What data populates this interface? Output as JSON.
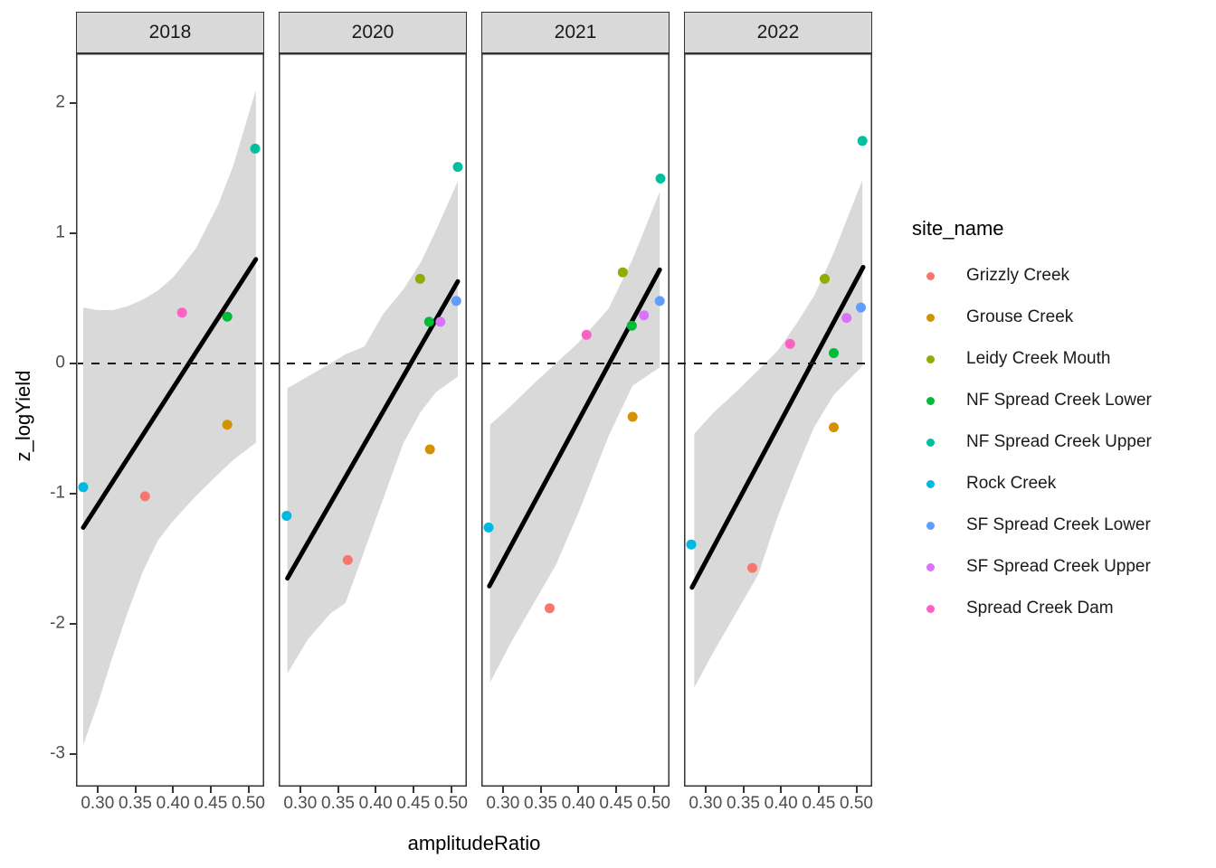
{
  "figure": {
    "background": "#ffffff",
    "panel_background": "#ffffff",
    "panel_border_color": "#333333",
    "strip_background": "#D9D9D9",
    "ribbon_color": "#D9D9D9",
    "trend_color": "#000000"
  },
  "axes": {
    "x": {
      "title": "amplitudeRatio",
      "tick_labels": [
        "0.30",
        "0.35",
        "0.40",
        "0.45",
        "0.50"
      ],
      "tick_values": [
        0.3,
        0.35,
        0.4,
        0.45,
        0.5
      ]
    },
    "y": {
      "title": "z_logYield",
      "tick_labels": [
        "2",
        "1",
        "0",
        "-1",
        "-2",
        "-3"
      ],
      "tick_values": [
        2,
        1,
        0,
        -1,
        -2,
        -3
      ]
    }
  },
  "legend": {
    "title": "site_name",
    "items": [
      {
        "label": "Grizzly Creek",
        "color": "#F8766D"
      },
      {
        "label": "Grouse Creek",
        "color": "#D39200"
      },
      {
        "label": "Leidy Creek Mouth",
        "color": "#93AA00"
      },
      {
        "label": "NF Spread Creek Lower",
        "color": "#00BA38"
      },
      {
        "label": "NF Spread Creek Upper",
        "color": "#00C19F"
      },
      {
        "label": "Rock Creek",
        "color": "#00B9E3"
      },
      {
        "label": "SF Spread Creek Lower",
        "color": "#619CFF"
      },
      {
        "label": "SF Spread Creek Upper",
        "color": "#DB72FB"
      },
      {
        "label": "Spread Creek Dam",
        "color": "#FF61C3"
      }
    ]
  },
  "chart_data": {
    "type": "scatter",
    "xlabel": "amplitudeRatio",
    "ylabel": "z_logYield",
    "facet_labels": [
      "2018",
      "2020",
      "2021",
      "2022"
    ],
    "x_range": [
      0.2714,
      0.521
    ],
    "y_range": [
      -3.25,
      2.382
    ],
    "x_ticks": [
      0.3,
      0.35,
      0.4,
      0.45,
      0.5
    ],
    "y_ticks": [
      2,
      1,
      0,
      -1,
      -2,
      -3
    ],
    "zero_line_y": 0,
    "grid": "off",
    "legend_position": "right",
    "sites": [
      {
        "name": "Grizzly Creek",
        "color": "#F8766D"
      },
      {
        "name": "Grouse Creek",
        "color": "#D39200"
      },
      {
        "name": "Leidy Creek Mouth",
        "color": "#93AA00"
      },
      {
        "name": "NF Spread Creek Lower",
        "color": "#00BA38"
      },
      {
        "name": "NF Spread Creek Upper",
        "color": "#00C19F"
      },
      {
        "name": "Rock Creek",
        "color": "#00B9E3"
      },
      {
        "name": "SF Spread Creek Lower",
        "color": "#619CFF"
      },
      {
        "name": "SF Spread Creek Upper",
        "color": "#DB72FB"
      },
      {
        "name": "Spread Creek Dam",
        "color": "#FF61C3"
      }
    ],
    "facets": [
      {
        "label": "2018",
        "points": [
          {
            "site": "Rock Creek",
            "x": 0.281,
            "y": -0.95
          },
          {
            "site": "Grizzly Creek",
            "x": 0.363,
            "y": -1.02
          },
          {
            "site": "Spread Creek Dam",
            "x": 0.412,
            "y": 0.39
          },
          {
            "site": "NF Spread Creek Lower",
            "x": 0.472,
            "y": 0.36
          },
          {
            "site": "Grouse Creek",
            "x": 0.472,
            "y": -0.47
          },
          {
            "site": "NF Spread Creek Upper",
            "x": 0.509,
            "y": 1.65
          }
        ],
        "trend": {
          "x": [
            0.281,
            0.51
          ],
          "y": [
            -1.26,
            0.8
          ]
        },
        "ribbon": {
          "x": [
            0.281,
            0.3,
            0.32,
            0.34,
            0.36,
            0.38,
            0.4,
            0.43,
            0.46,
            0.48,
            0.51
          ],
          "upper": [
            0.43,
            0.41,
            0.41,
            0.44,
            0.49,
            0.56,
            0.66,
            0.88,
            1.22,
            1.52,
            2.1
          ],
          "lower": [
            -2.93,
            -2.62,
            -2.25,
            -1.91,
            -1.6,
            -1.36,
            -1.21,
            -1.02,
            -0.85,
            -0.74,
            -0.61
          ]
        }
      },
      {
        "label": "2020",
        "points": [
          {
            "site": "Rock Creek",
            "x": 0.282,
            "y": -1.17
          },
          {
            "site": "Grizzly Creek",
            "x": 0.363,
            "y": -1.51
          },
          {
            "site": "Leidy Creek Mouth",
            "x": 0.459,
            "y": 0.65
          },
          {
            "site": "NF Spread Creek Lower",
            "x": 0.471,
            "y": 0.32
          },
          {
            "site": "SF Spread Creek Upper",
            "x": 0.486,
            "y": 0.32
          },
          {
            "site": "Grouse Creek",
            "x": 0.472,
            "y": -0.66
          },
          {
            "site": "SF Spread Creek Lower",
            "x": 0.507,
            "y": 0.48
          },
          {
            "site": "NF Spread Creek Upper",
            "x": 0.509,
            "y": 1.51
          }
        ],
        "trend": {
          "x": [
            0.283,
            0.509
          ],
          "y": [
            -1.65,
            0.63
          ]
        },
        "ribbon": {
          "x": [
            0.283,
            0.31,
            0.34,
            0.36,
            0.385,
            0.41,
            0.437,
            0.46,
            0.48,
            0.509
          ],
          "upper": [
            -0.19,
            -0.1,
            0.0,
            0.07,
            0.13,
            0.38,
            0.57,
            0.78,
            1.02,
            1.4
          ],
          "lower": [
            -2.38,
            -2.12,
            -1.92,
            -1.84,
            -1.44,
            -1.04,
            -0.61,
            -0.37,
            -0.22,
            -0.1
          ]
        }
      },
      {
        "label": "2021",
        "points": [
          {
            "site": "Rock Creek",
            "x": 0.281,
            "y": -1.26
          },
          {
            "site": "Grizzly Creek",
            "x": 0.362,
            "y": -1.88
          },
          {
            "site": "Spread Creek Dam",
            "x": 0.411,
            "y": 0.22
          },
          {
            "site": "Leidy Creek Mouth",
            "x": 0.459,
            "y": 0.7
          },
          {
            "site": "NF Spread Creek Lower",
            "x": 0.471,
            "y": 0.29
          },
          {
            "site": "SF Spread Creek Upper",
            "x": 0.487,
            "y": 0.37
          },
          {
            "site": "Grouse Creek",
            "x": 0.472,
            "y": -0.41
          },
          {
            "site": "SF Spread Creek Lower",
            "x": 0.508,
            "y": 0.48
          },
          {
            "site": "NF Spread Creek Upper",
            "x": 0.509,
            "y": 1.42
          }
        ],
        "trend": {
          "x": [
            0.282,
            0.508
          ],
          "y": [
            -1.71,
            0.72
          ]
        },
        "ribbon": {
          "x": [
            0.283,
            0.31,
            0.34,
            0.37,
            0.4,
            0.44,
            0.472,
            0.508
          ],
          "upper": [
            -0.47,
            -0.33,
            -0.16,
            0.0,
            0.16,
            0.42,
            0.8,
            1.32
          ],
          "lower": [
            -2.45,
            -2.15,
            -1.85,
            -1.55,
            -1.15,
            -0.56,
            -0.17,
            -0.03
          ]
        }
      },
      {
        "label": "2022",
        "points": [
          {
            "site": "Rock Creek",
            "x": 0.281,
            "y": -1.39
          },
          {
            "site": "Grizzly Creek",
            "x": 0.362,
            "y": -1.57
          },
          {
            "site": "Spread Creek Dam",
            "x": 0.412,
            "y": 0.15
          },
          {
            "site": "Leidy Creek Mouth",
            "x": 0.458,
            "y": 0.65
          },
          {
            "site": "NF Spread Creek Lower",
            "x": 0.47,
            "y": 0.08
          },
          {
            "site": "SF Spread Creek Upper",
            "x": 0.487,
            "y": 0.35
          },
          {
            "site": "Grouse Creek",
            "x": 0.47,
            "y": -0.49
          },
          {
            "site": "SF Spread Creek Lower",
            "x": 0.506,
            "y": 0.43
          },
          {
            "site": "NF Spread Creek Upper",
            "x": 0.508,
            "y": 1.71
          }
        ],
        "trend": {
          "x": [
            0.282,
            0.509
          ],
          "y": [
            -1.72,
            0.74
          ]
        },
        "ribbon": {
          "x": [
            0.285,
            0.31,
            0.34,
            0.37,
            0.396,
            0.42,
            0.444,
            0.47,
            0.508
          ],
          "upper": [
            -0.54,
            -0.38,
            -0.22,
            -0.05,
            0.1,
            0.3,
            0.52,
            0.85,
            1.41
          ],
          "lower": [
            -2.49,
            -2.22,
            -1.92,
            -1.62,
            -1.17,
            -0.82,
            -0.49,
            -0.24,
            -0.02
          ]
        }
      }
    ]
  }
}
